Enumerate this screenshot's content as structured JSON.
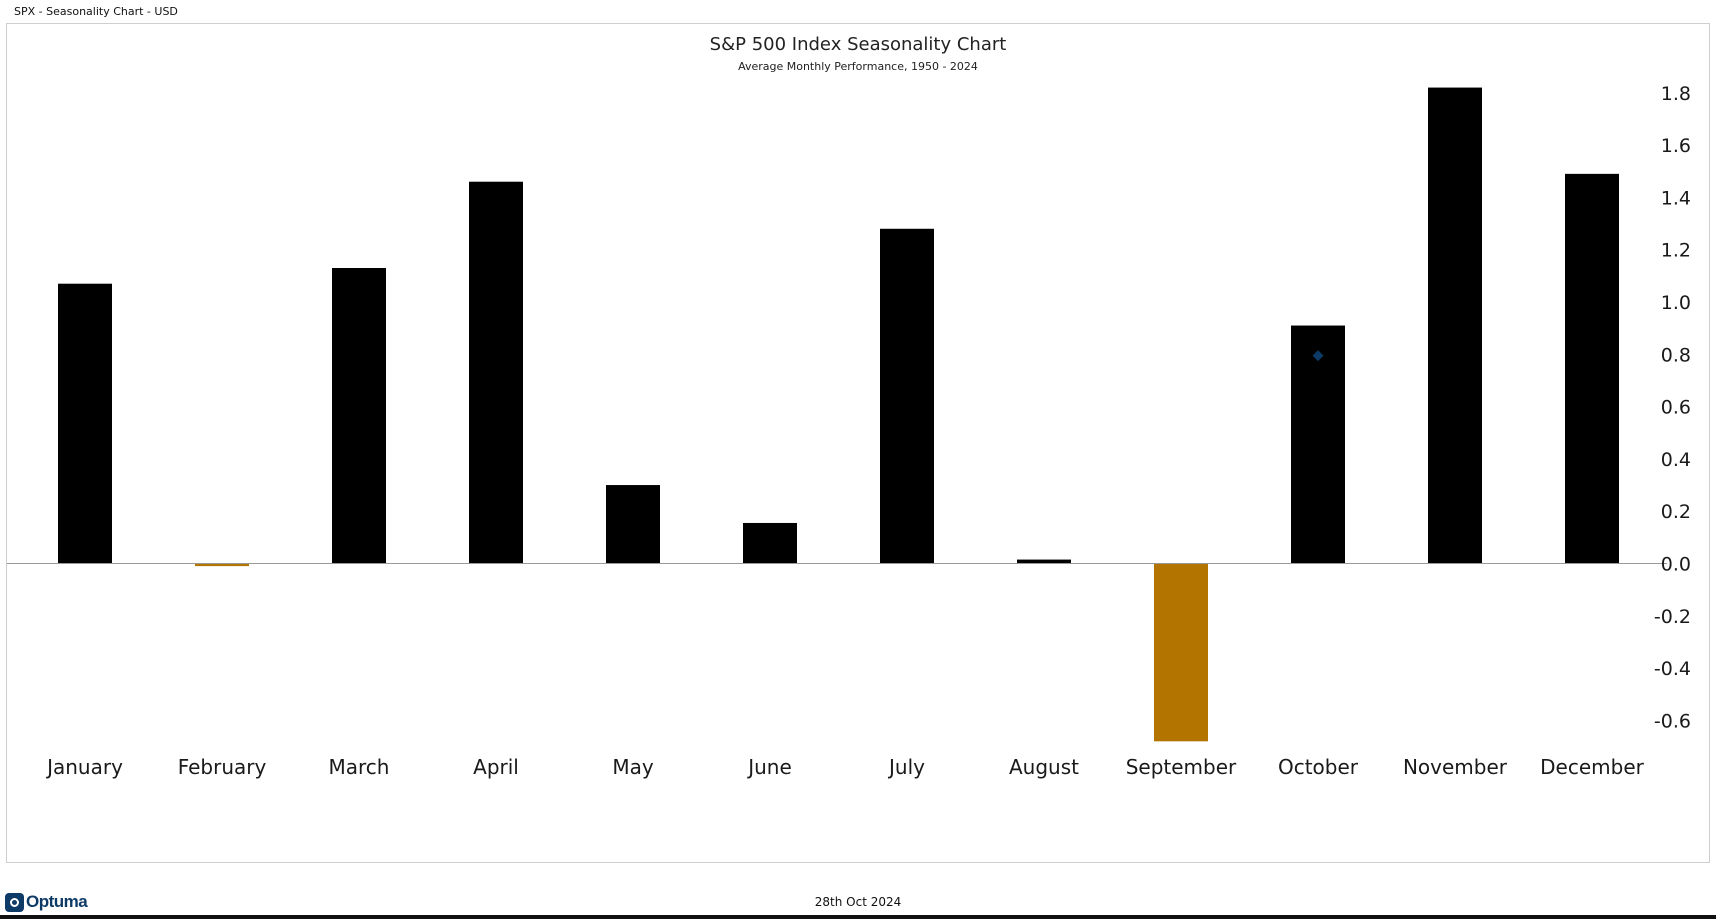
{
  "window": {
    "title": "SPX - Seasonality Chart - USD"
  },
  "footer": {
    "logo_text": "Optuma",
    "date": "28th Oct 2024"
  },
  "colors": {
    "positive": "#000000",
    "negative": "#b37400",
    "marker": "#0d3a66",
    "zero_line": "#999999"
  },
  "chart_data": {
    "type": "bar",
    "title": "S&P 500 Index Seasonality Chart",
    "subtitle": "Average Monthly Performance, 1950 - 2024",
    "xlabel": "",
    "ylabel": "",
    "categories": [
      "January",
      "February",
      "March",
      "April",
      "May",
      "June",
      "July",
      "August",
      "September",
      "October",
      "November",
      "December"
    ],
    "values": [
      1.07,
      -0.01,
      1.13,
      1.46,
      0.3,
      0.155,
      1.28,
      0.015,
      -0.68,
      0.91,
      1.82,
      1.49
    ],
    "ylim": [
      -0.68,
      1.82
    ],
    "yticks": [
      "-0.6",
      "-0.4",
      "-0.2",
      "0.0",
      "0.2",
      "0.4",
      "0.6",
      "0.8",
      "1.0",
      "1.2",
      "1.4",
      "1.6",
      "1.8"
    ],
    "markers": [
      {
        "category": "October",
        "value": 0.795,
        "shape": "diamond"
      }
    ],
    "grid": false,
    "axis_position": "right",
    "legend": "none"
  }
}
